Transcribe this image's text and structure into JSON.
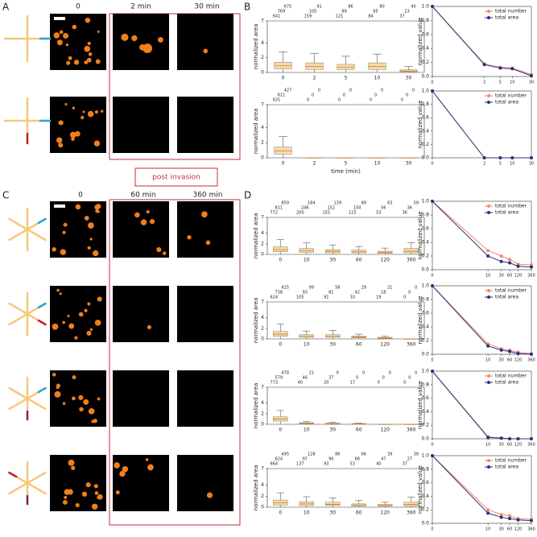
{
  "figure": {
    "A": {
      "label": "A",
      "columns": [
        "0",
        "2 min",
        "30 min"
      ]
    },
    "post_invasion": "post invasion",
    "B": {
      "label": "B"
    },
    "C": {
      "label": "C",
      "columns": [
        "0",
        "60 min",
        "360 min"
      ]
    },
    "D": {
      "label": "D"
    }
  },
  "chart_data": [
    {
      "type": "box",
      "ylabel": "normalized area",
      "categories": [
        "0",
        "2",
        "5",
        "10",
        "30"
      ],
      "counts": [
        [
          675,
          91,
          86,
          80,
          40
        ],
        [
          769,
          105,
          89,
          85,
          23
        ],
        [
          641,
          159,
          121,
          84,
          37
        ]
      ],
      "boxes": [
        {
          "low": 0,
          "q1": 0.5,
          "median": 0.9,
          "q3": 1.4,
          "high": 2.8
        },
        {
          "low": 0,
          "q1": 0.4,
          "median": 0.8,
          "q3": 1.3,
          "high": 2.6
        },
        {
          "low": 0,
          "q1": 0.4,
          "median": 0.7,
          "q3": 1.1,
          "high": 2.2
        },
        {
          "low": 0,
          "q1": 0.4,
          "median": 0.8,
          "q3": 1.3,
          "high": 2.5
        },
        {
          "low": 0,
          "q1": 0.1,
          "median": 0.2,
          "q3": 0.35,
          "high": 0.8
        }
      ],
      "ylim": [
        0,
        7
      ],
      "yticks": [
        0,
        2,
        4,
        7
      ],
      "color": "#f3dcb0"
    },
    {
      "type": "line",
      "ylabel": "normalized value",
      "x": [
        0,
        2,
        5,
        10,
        30
      ],
      "xlim": [
        0,
        30
      ],
      "xticks": [
        0,
        2,
        5,
        10,
        30
      ],
      "xscale": "symlog",
      "ylim": [
        0,
        1
      ],
      "yticks": [
        {
          "value": 0,
          "label": "0.0"
        },
        0.2,
        0.4,
        0.6,
        0.8,
        {
          "value": 1,
          "label": "1.0"
        }
      ],
      "legend": "upper right",
      "series": [
        {
          "name": "total number",
          "color": "#f4886a",
          "values": [
            1,
            0.18,
            0.13,
            0.12,
            0.03
          ]
        },
        {
          "name": "total area",
          "color": "#2b2f7e",
          "values": [
            1,
            0.17,
            0.12,
            0.11,
            0.01
          ]
        }
      ]
    },
    {
      "type": "box",
      "ylabel": "normalized area",
      "xlabel": "time (min)",
      "categories": [
        "0",
        "2",
        "5",
        "10",
        "30"
      ],
      "counts": [
        [
          427,
          0,
          0,
          0,
          0
        ],
        [
          611,
          0,
          0,
          0,
          0
        ],
        [
          631,
          0,
          0,
          0,
          0
        ]
      ],
      "boxes": [
        {
          "low": 0,
          "q1": 0.5,
          "median": 0.9,
          "q3": 1.4,
          "high": 2.8
        },
        {
          "low": 0,
          "q1": 0,
          "median": 0,
          "q3": 0,
          "high": 0
        },
        {
          "low": 0,
          "q1": 0,
          "median": 0,
          "q3": 0,
          "high": 0
        },
        {
          "low": 0,
          "q1": 0,
          "median": 0,
          "q3": 0,
          "high": 0
        },
        {
          "low": 0,
          "q1": 0,
          "median": 0,
          "q3": 0,
          "high": 0
        }
      ],
      "ylim": [
        0,
        7
      ],
      "yticks": [
        0,
        2,
        4,
        7
      ],
      "color": "#f3dcb0"
    },
    {
      "type": "line",
      "ylabel": "normalized value",
      "x": [
        0,
        2,
        5,
        10,
        30
      ],
      "xlim": [
        0,
        30
      ],
      "xticks": [
        0,
        2,
        5,
        10,
        30
      ],
      "xscale": "symlog",
      "ylim": [
        0,
        1
      ],
      "yticks": [
        {
          "value": 0,
          "label": "0.0"
        },
        0.2,
        0.4,
        0.6,
        0.8,
        {
          "value": 1,
          "label": "1.0"
        }
      ],
      "legend": "upper right",
      "series": [
        {
          "name": "total number",
          "color": "#f4886a",
          "values": [
            1,
            0,
            0,
            0,
            0
          ]
        },
        {
          "name": "total area",
          "color": "#2b2f7e",
          "values": [
            1,
            0,
            0,
            0,
            0
          ]
        }
      ]
    },
    {
      "type": "box",
      "ylabel": "normalized area",
      "categories": [
        "0",
        "10",
        "30",
        "60",
        "120",
        "360"
      ],
      "counts": [
        [
          859,
          184,
          139,
          89,
          63,
          59
        ],
        [
          811,
          246,
          152,
          150,
          56,
          36
        ],
        [
          772,
          200,
          155,
          125,
          53,
          36
        ]
      ],
      "boxes": [
        {
          "low": 0,
          "q1": 0.5,
          "median": 0.9,
          "q3": 1.4,
          "high": 2.8
        },
        {
          "low": 0,
          "q1": 0.4,
          "median": 0.7,
          "q3": 1.1,
          "high": 2.2
        },
        {
          "low": 0,
          "q1": 0.3,
          "median": 0.6,
          "q3": 0.9,
          "high": 1.8
        },
        {
          "low": 0,
          "q1": 0.3,
          "median": 0.5,
          "q3": 0.8,
          "high": 1.5
        },
        {
          "low": 0,
          "q1": 0.2,
          "median": 0.4,
          "q3": 0.6,
          "high": 1.2
        },
        {
          "low": 0,
          "q1": 0.3,
          "median": 0.6,
          "q3": 1.1,
          "high": 2.2
        }
      ],
      "ylim": [
        0,
        7
      ],
      "yticks": [
        0,
        2,
        4,
        7
      ],
      "color": "#f3dcb0"
    },
    {
      "type": "line",
      "ylabel": "normalized value",
      "x": [
        0,
        10,
        30,
        60,
        120,
        360
      ],
      "xlim": [
        0,
        360
      ],
      "xticks": [
        0,
        10,
        30,
        60,
        120,
        360
      ],
      "xscale": "symlog",
      "ylim": [
        0,
        1
      ],
      "yticks": [
        {
          "value": 0,
          "label": "0.0"
        },
        0.2,
        0.4,
        0.6,
        0.8,
        {
          "value": 1,
          "label": "1.0"
        }
      ],
      "legend": "upper right",
      "series": [
        {
          "name": "total number",
          "color": "#f4886a",
          "values": [
            1,
            0.28,
            0.2,
            0.15,
            0.08,
            0.07
          ]
        },
        {
          "name": "total area",
          "color": "#2b2f7e",
          "values": [
            1,
            0.2,
            0.12,
            0.1,
            0.05,
            0.04
          ]
        }
      ]
    },
    {
      "type": "box",
      "ylabel": "normalized area",
      "categories": [
        "0",
        "10",
        "30",
        "60",
        "120",
        "360"
      ],
      "counts": [
        [
          625,
          99,
          58,
          29,
          21,
          0
        ],
        [
          738,
          93,
          81,
          42,
          18,
          0
        ],
        [
          624,
          105,
          91,
          33,
          19,
          0
        ]
      ],
      "boxes": [
        {
          "low": 0,
          "q1": 0.5,
          "median": 0.9,
          "q3": 1.4,
          "high": 2.8
        },
        {
          "low": 0,
          "q1": 0.3,
          "median": 0.5,
          "q3": 0.8,
          "high": 1.5
        },
        {
          "low": 0,
          "q1": 0.3,
          "median": 0.5,
          "q3": 0.8,
          "high": 1.6
        },
        {
          "low": 0,
          "q1": 0.2,
          "median": 0.35,
          "q3": 0.5,
          "high": 0.9
        },
        {
          "low": 0,
          "q1": 0.1,
          "median": 0.2,
          "q3": 0.3,
          "high": 0.5
        },
        {
          "low": 0,
          "q1": 0,
          "median": 0,
          "q3": 0,
          "high": 0
        }
      ],
      "ylim": [
        0,
        7
      ],
      "yticks": [
        0,
        2,
        4,
        7
      ],
      "color": "#f3dcb0"
    },
    {
      "type": "line",
      "ylabel": "normalized value",
      "x": [
        0,
        10,
        30,
        60,
        120,
        360
      ],
      "xlim": [
        0,
        360
      ],
      "xticks": [
        0,
        10,
        30,
        60,
        120,
        360
      ],
      "xscale": "symlog",
      "ylim": [
        0,
        1
      ],
      "yticks": [
        {
          "value": 0,
          "label": "0.0"
        },
        0.2,
        0.4,
        0.6,
        0.8,
        {
          "value": 1,
          "label": "1.0"
        }
      ],
      "legend": "upper right",
      "series": [
        {
          "name": "total number",
          "color": "#f4886a",
          "values": [
            1,
            0.15,
            0.08,
            0.06,
            0.03,
            0.01
          ]
        },
        {
          "name": "total area",
          "color": "#2b2f7e",
          "values": [
            1,
            0.12,
            0.06,
            0.04,
            0.01,
            0
          ]
        }
      ]
    },
    {
      "type": "box",
      "ylabel": "normalized area",
      "categories": [
        "0",
        "10",
        "30",
        "60",
        "120",
        "360"
      ],
      "counts": [
        [
          478,
          21,
          0,
          0,
          0,
          0
        ],
        [
          579,
          46,
          37,
          0,
          0,
          0
        ],
        [
          773,
          40,
          20,
          17,
          0,
          0
        ]
      ],
      "boxes": [
        {
          "low": 0,
          "q1": 0.6,
          "median": 1.0,
          "q3": 1.4,
          "high": 2.6
        },
        {
          "low": 0,
          "q1": 0.1,
          "median": 0.2,
          "q3": 0.3,
          "high": 0.5
        },
        {
          "low": 0,
          "q1": 0.05,
          "median": 0.1,
          "q3": 0.2,
          "high": 0.35
        },
        {
          "low": 0,
          "q1": 0.05,
          "median": 0.1,
          "q3": 0.15,
          "high": 0.2
        },
        {
          "low": 0,
          "q1": 0,
          "median": 0,
          "q3": 0,
          "high": 0
        },
        {
          "low": 0,
          "q1": 0,
          "median": 0,
          "q3": 0,
          "high": 0
        }
      ],
      "ylim": [
        0,
        7
      ],
      "yticks": [
        0,
        2,
        4,
        7
      ],
      "color": "#f3dcb0"
    },
    {
      "type": "line",
      "ylabel": "normalized value",
      "x": [
        0,
        10,
        30,
        60,
        120,
        360
      ],
      "xlim": [
        0,
        360
      ],
      "xticks": [
        0,
        10,
        30,
        60,
        120,
        360
      ],
      "xscale": "symlog",
      "ylim": [
        0,
        1
      ],
      "yticks": [
        {
          "value": 0,
          "label": "0.0"
        },
        0.2,
        0.4,
        0.6,
        0.8,
        {
          "value": 1,
          "label": "1.0"
        }
      ],
      "legend": "upper right",
      "series": [
        {
          "name": "total number",
          "color": "#f4886a",
          "values": [
            1,
            0.03,
            0.01,
            0,
            0,
            0
          ]
        },
        {
          "name": "total area",
          "color": "#2b2f7e",
          "values": [
            1,
            0.02,
            0.01,
            0,
            0,
            0
          ]
        }
      ]
    },
    {
      "type": "box",
      "ylabel": "normalized area",
      "categories": [
        "0",
        "10",
        "30",
        "60",
        "120",
        "360"
      ],
      "counts": [
        [
          495,
          128,
          86,
          66,
          39,
          39
        ],
        [
          624,
          97,
          90,
          68,
          47,
          27
        ],
        [
          664,
          137,
          93,
          53,
          40,
          37
        ]
      ],
      "boxes": [
        {
          "low": 0,
          "q1": 0.4,
          "median": 0.8,
          "q3": 1.3,
          "high": 2.6
        },
        {
          "low": 0,
          "q1": 0.3,
          "median": 0.6,
          "q3": 1.0,
          "high": 1.9
        },
        {
          "low": 0,
          "q1": 0.3,
          "median": 0.5,
          "q3": 0.9,
          "high": 1.7
        },
        {
          "low": 0,
          "q1": 0.2,
          "median": 0.4,
          "q3": 0.6,
          "high": 1.2
        },
        {
          "low": 0,
          "q1": 0.2,
          "median": 0.3,
          "q3": 0.5,
          "high": 0.9
        },
        {
          "low": 0,
          "q1": 0.2,
          "median": 0.5,
          "q3": 0.9,
          "high": 1.8
        }
      ],
      "ylim": [
        0,
        7
      ],
      "yticks": [
        0,
        2,
        4,
        7
      ],
      "color": "#f3dcb0"
    },
    {
      "type": "line",
      "ylabel": "normalized value",
      "x": [
        0,
        10,
        30,
        60,
        120,
        360
      ],
      "xlim": [
        0,
        360
      ],
      "xticks": [
        0,
        10,
        30,
        60,
        120,
        360
      ],
      "xscale": "symlog",
      "ylim": [
        0,
        1
      ],
      "yticks": [
        {
          "value": 0,
          "label": "0.0"
        },
        0.2,
        0.4,
        0.6,
        0.8,
        {
          "value": 1,
          "label": "1.0"
        }
      ],
      "legend": "upper right",
      "series": [
        {
          "name": "total number",
          "color": "#f4886a",
          "values": [
            1,
            0.2,
            0.13,
            0.11,
            0.07,
            0.06
          ]
        },
        {
          "name": "total area",
          "color": "#2b2f7e",
          "values": [
            1,
            0.15,
            0.09,
            0.07,
            0.05,
            0.04
          ]
        }
      ]
    }
  ]
}
